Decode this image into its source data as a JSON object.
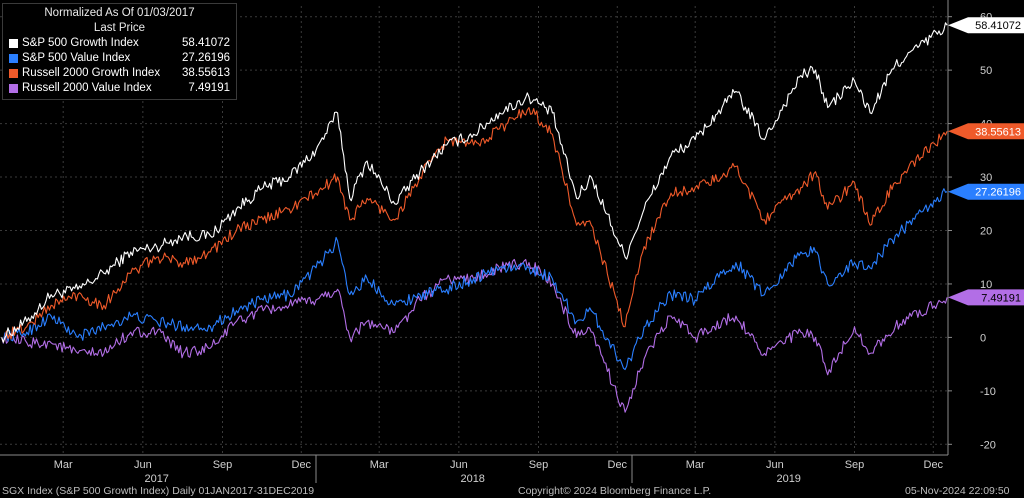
{
  "legend": {
    "header_line1": "Normalized As Of 01/03/2017",
    "header_line2": "Last Price"
  },
  "footer": {
    "left": "SGX Index (S&P 500 Growth Index)  Daily 01JAN2017-31DEC2019",
    "center": "Copyright© 2024 Bloomberg Finance L.P.",
    "right": "05-Nov-2024 22:09:50"
  },
  "chart_data": {
    "type": "line",
    "ylim": [
      -22,
      62
    ],
    "y_ticks": [
      -20,
      -10,
      0,
      10,
      20,
      30,
      40,
      50,
      60
    ],
    "x_month_labels": [
      "Mar",
      "Jun",
      "Sep",
      "Dec",
      "Mar",
      "Jun",
      "Sep",
      "Dec",
      "Mar",
      "Jun",
      "Sep",
      "Dec"
    ],
    "x_year_labels": [
      "2017",
      "2018",
      "2019"
    ],
    "series": [
      {
        "name": "S&P 500 Growth Index",
        "last_label": "58.41072",
        "color": "#ffffff",
        "points": [
          [
            "2017-01-03",
            0
          ],
          [
            "2017-02-01",
            3
          ],
          [
            "2017-03-01",
            8
          ],
          [
            "2017-04-01",
            9
          ],
          [
            "2017-05-01",
            12
          ],
          [
            "2017-06-01",
            16
          ],
          [
            "2017-07-01",
            17
          ],
          [
            "2017-08-01",
            19
          ],
          [
            "2017-09-01",
            19
          ],
          [
            "2017-10-01",
            24
          ],
          [
            "2017-11-01",
            28
          ],
          [
            "2017-12-01",
            30
          ],
          [
            "2018-01-01",
            35
          ],
          [
            "2018-01-26",
            42
          ],
          [
            "2018-02-09",
            26
          ],
          [
            "2018-03-01",
            33
          ],
          [
            "2018-04-02",
            25
          ],
          [
            "2018-05-01",
            31
          ],
          [
            "2018-06-01",
            36
          ],
          [
            "2018-07-02",
            38
          ],
          [
            "2018-08-01",
            42
          ],
          [
            "2018-09-04",
            45
          ],
          [
            "2018-10-01",
            42
          ],
          [
            "2018-10-29",
            26
          ],
          [
            "2018-11-15",
            30
          ],
          [
            "2018-12-24",
            15
          ],
          [
            "2019-01-15",
            24
          ],
          [
            "2019-02-15",
            34
          ],
          [
            "2019-03-15",
            37
          ],
          [
            "2019-04-15",
            43
          ],
          [
            "2019-05-01",
            46
          ],
          [
            "2019-06-03",
            37
          ],
          [
            "2019-07-15",
            49
          ],
          [
            "2019-08-01",
            50
          ],
          [
            "2019-08-15",
            43
          ],
          [
            "2019-09-15",
            48
          ],
          [
            "2019-10-03",
            42
          ],
          [
            "2019-11-01",
            51
          ],
          [
            "2019-12-31",
            58.41
          ]
        ]
      },
      {
        "name": "S&P 500 Value Index",
        "last_label": "27.26196",
        "color": "#2a7fff",
        "points": [
          [
            "2017-01-03",
            0
          ],
          [
            "2017-02-01",
            1
          ],
          [
            "2017-03-01",
            4
          ],
          [
            "2017-04-01",
            0
          ],
          [
            "2017-05-01",
            2
          ],
          [
            "2017-06-01",
            4
          ],
          [
            "2017-07-01",
            3
          ],
          [
            "2017-08-01",
            2
          ],
          [
            "2017-09-01",
            2
          ],
          [
            "2017-10-01",
            5
          ],
          [
            "2017-11-01",
            7
          ],
          [
            "2017-12-01",
            8
          ],
          [
            "2018-01-01",
            13
          ],
          [
            "2018-01-26",
            18
          ],
          [
            "2018-02-09",
            8
          ],
          [
            "2018-03-01",
            11
          ],
          [
            "2018-04-02",
            6
          ],
          [
            "2018-05-01",
            8
          ],
          [
            "2018-06-01",
            9
          ],
          [
            "2018-07-02",
            11
          ],
          [
            "2018-08-01",
            13
          ],
          [
            "2018-09-04",
            13
          ],
          [
            "2018-10-01",
            11
          ],
          [
            "2018-10-29",
            3
          ],
          [
            "2018-11-15",
            5
          ],
          [
            "2018-12-24",
            -6
          ],
          [
            "2019-01-15",
            2
          ],
          [
            "2019-02-15",
            8
          ],
          [
            "2019-03-15",
            7
          ],
          [
            "2019-04-15",
            12
          ],
          [
            "2019-05-01",
            14
          ],
          [
            "2019-06-03",
            8
          ],
          [
            "2019-07-15",
            16
          ],
          [
            "2019-08-01",
            16
          ],
          [
            "2019-08-15",
            10
          ],
          [
            "2019-09-15",
            14
          ],
          [
            "2019-10-03",
            13
          ],
          [
            "2019-11-01",
            19
          ],
          [
            "2019-12-31",
            27.26
          ]
        ]
      },
      {
        "name": "Russell 2000 Growth Index",
        "last_label": "38.55613",
        "color": "#ef5a2a",
        "points": [
          [
            "2017-01-03",
            0
          ],
          [
            "2017-02-01",
            2
          ],
          [
            "2017-03-01",
            6
          ],
          [
            "2017-04-01",
            8
          ],
          [
            "2017-05-01",
            6
          ],
          [
            "2017-06-01",
            12
          ],
          [
            "2017-07-01",
            15
          ],
          [
            "2017-08-01",
            14
          ],
          [
            "2017-09-01",
            16
          ],
          [
            "2017-10-01",
            20
          ],
          [
            "2017-11-01",
            22
          ],
          [
            "2017-12-01",
            24
          ],
          [
            "2018-01-01",
            27
          ],
          [
            "2018-01-26",
            30
          ],
          [
            "2018-02-09",
            22
          ],
          [
            "2018-03-01",
            26
          ],
          [
            "2018-04-02",
            22
          ],
          [
            "2018-05-01",
            30
          ],
          [
            "2018-06-01",
            37
          ],
          [
            "2018-07-02",
            36
          ],
          [
            "2018-08-01",
            39
          ],
          [
            "2018-09-04",
            43
          ],
          [
            "2018-10-01",
            38
          ],
          [
            "2018-10-29",
            21
          ],
          [
            "2018-11-15",
            21
          ],
          [
            "2018-12-24",
            2
          ],
          [
            "2019-01-15",
            17
          ],
          [
            "2019-02-15",
            27
          ],
          [
            "2019-03-15",
            28
          ],
          [
            "2019-04-15",
            30
          ],
          [
            "2019-05-01",
            32
          ],
          [
            "2019-06-03",
            22
          ],
          [
            "2019-07-15",
            28
          ],
          [
            "2019-08-01",
            31
          ],
          [
            "2019-08-15",
            24
          ],
          [
            "2019-09-15",
            29
          ],
          [
            "2019-10-03",
            21
          ],
          [
            "2019-11-01",
            29
          ],
          [
            "2019-12-31",
            38.56
          ]
        ]
      },
      {
        "name": "Russell 2000 Value Index",
        "last_label": "7.49191",
        "color": "#b26ee6",
        "points": [
          [
            "2017-01-03",
            0
          ],
          [
            "2017-02-01",
            -1
          ],
          [
            "2017-03-01",
            -1
          ],
          [
            "2017-04-01",
            -3
          ],
          [
            "2017-05-01",
            -3
          ],
          [
            "2017-06-01",
            1
          ],
          [
            "2017-07-01",
            1
          ],
          [
            "2017-08-01",
            -3
          ],
          [
            "2017-09-01",
            -2
          ],
          [
            "2017-10-01",
            3
          ],
          [
            "2017-11-01",
            5
          ],
          [
            "2017-12-01",
            6
          ],
          [
            "2018-01-01",
            7
          ],
          [
            "2018-01-26",
            9
          ],
          [
            "2018-02-09",
            0
          ],
          [
            "2018-03-01",
            3
          ],
          [
            "2018-04-02",
            1
          ],
          [
            "2018-05-01",
            7
          ],
          [
            "2018-06-01",
            11
          ],
          [
            "2018-07-02",
            11
          ],
          [
            "2018-08-01",
            13
          ],
          [
            "2018-09-04",
            14
          ],
          [
            "2018-10-01",
            10
          ],
          [
            "2018-10-29",
            0
          ],
          [
            "2018-11-15",
            1
          ],
          [
            "2018-12-24",
            -14
          ],
          [
            "2019-01-15",
            -4
          ],
          [
            "2019-02-15",
            4
          ],
          [
            "2019-03-15",
            0
          ],
          [
            "2019-04-15",
            3
          ],
          [
            "2019-05-01",
            4
          ],
          [
            "2019-06-03",
            -3
          ],
          [
            "2019-07-15",
            1
          ],
          [
            "2019-08-01",
            0
          ],
          [
            "2019-08-15",
            -7
          ],
          [
            "2019-09-15",
            2
          ],
          [
            "2019-10-03",
            -3
          ],
          [
            "2019-11-01",
            2
          ],
          [
            "2019-12-31",
            7.49
          ]
        ]
      }
    ]
  }
}
